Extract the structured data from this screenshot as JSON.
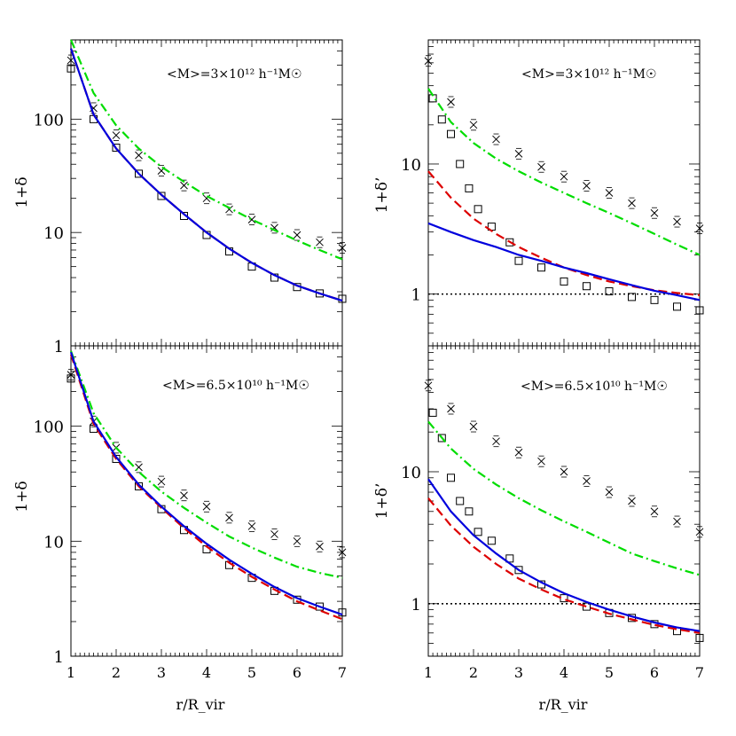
{
  "chart_data": [
    {
      "type": "scatter",
      "panel": "top-left",
      "annotation": "<M>=3×10¹² h⁻¹M☉",
      "ylabel": "1+δ",
      "xlabel": "",
      "xlim": [
        1,
        7
      ],
      "ylim": [
        1,
        500
      ],
      "yscale": "log",
      "yticks": [
        1,
        10,
        100
      ],
      "xticks": [],
      "series": [
        {
          "name": "",
          "marker": "x",
          "color": "#000000",
          "x": [
            1,
            1.5,
            2,
            2.5,
            3,
            3.5,
            4,
            4.5,
            5,
            5.5,
            6,
            6.5,
            7
          ],
          "y": [
            330,
            125,
            72,
            48,
            35,
            26,
            20,
            16,
            13,
            11,
            9.5,
            8.2,
            7.3
          ]
        },
        {
          "name": "",
          "marker": "square",
          "color": "#000000",
          "x": [
            1,
            1.5,
            2,
            2.5,
            3,
            3.5,
            4,
            4.5,
            5,
            5.5,
            6,
            6.5,
            7
          ],
          "y": [
            280,
            100,
            56,
            33,
            21,
            14,
            9.5,
            6.8,
            5.0,
            4.0,
            3.3,
            2.9,
            2.6
          ]
        },
        {
          "name": "",
          "line": "dash-dot",
          "color": "#00dd00",
          "x": [
            1,
            1.5,
            2,
            2.5,
            3,
            3.5,
            4,
            4.5,
            5,
            5.5,
            6,
            6.5,
            7
          ],
          "y": [
            500,
            170,
            88,
            55,
            38,
            28,
            21,
            16.5,
            13,
            10.5,
            8.5,
            7.0,
            5.8
          ]
        },
        {
          "name": "",
          "line": "dashed",
          "color": "#dd0000",
          "x": [
            1,
            1.5,
            2,
            2.5,
            3,
            3.5,
            4,
            4.5,
            5,
            5.5,
            6,
            6.5,
            7
          ],
          "y": [
            420,
            110,
            55,
            33,
            21.5,
            14.5,
            10,
            7.2,
            5.4,
            4.2,
            3.4,
            2.9,
            2.5
          ]
        },
        {
          "name": "",
          "line": "solid",
          "color": "#0000dd",
          "x": [
            1,
            1.5,
            2,
            2.5,
            3,
            3.5,
            4,
            4.5,
            5,
            5.5,
            6,
            6.5,
            7
          ],
          "y": [
            420,
            110,
            55,
            33,
            21.5,
            14.5,
            10,
            7.2,
            5.4,
            4.2,
            3.4,
            2.9,
            2.5
          ]
        }
      ]
    },
    {
      "type": "scatter",
      "panel": "top-right",
      "annotation": "<M>=3×10¹² h⁻¹M☉",
      "ylabel": "1+δ’",
      "xlabel": "",
      "xlim": [
        1,
        7
      ],
      "ylim": [
        0.4,
        90
      ],
      "yscale": "log",
      "yticks": [
        1,
        10
      ],
      "xticks": [],
      "reference_line": 1,
      "series": [
        {
          "name": "",
          "marker": "x",
          "color": "#000000",
          "x": [
            1,
            1.5,
            2,
            2.5,
            3,
            3.5,
            4,
            4.5,
            5,
            5.5,
            6,
            6.5,
            7
          ],
          "y": [
            62,
            30,
            20,
            15.5,
            12,
            9.5,
            8,
            6.8,
            6,
            5,
            4.2,
            3.6,
            3.2
          ]
        },
        {
          "name": "",
          "marker": "square",
          "color": "#000000",
          "x": [
            1.1,
            1.3,
            1.5,
            1.7,
            1.9,
            2.1,
            2.4,
            2.8,
            3,
            3.5,
            4,
            4.5,
            5,
            5.5,
            6,
            6.5,
            7
          ],
          "y": [
            32,
            22,
            17,
            10,
            6.5,
            4.5,
            3.3,
            2.5,
            1.8,
            1.6,
            1.25,
            1.15,
            1.05,
            0.95,
            0.9,
            0.8,
            0.75
          ]
        },
        {
          "name": "",
          "line": "dash-dot",
          "color": "#00dd00",
          "x": [
            1,
            1.5,
            2,
            2.5,
            3,
            3.5,
            4,
            4.5,
            5,
            5.5,
            6,
            6.5,
            7
          ],
          "y": [
            38,
            21,
            14.5,
            11,
            8.8,
            7.2,
            6,
            5,
            4.2,
            3.5,
            2.9,
            2.4,
            2.0
          ]
        },
        {
          "name": "",
          "line": "dashed",
          "color": "#dd0000",
          "x": [
            1,
            1.5,
            2,
            2.5,
            3,
            3.5,
            4,
            4.5,
            5,
            5.5,
            6,
            6.5,
            7
          ],
          "y": [
            8.8,
            5.5,
            3.8,
            2.9,
            2.3,
            1.9,
            1.6,
            1.4,
            1.25,
            1.15,
            1.07,
            1.02,
            0.98
          ]
        },
        {
          "name": "",
          "line": "solid",
          "color": "#0000dd",
          "x": [
            1,
            1.5,
            2,
            2.5,
            3,
            3.5,
            4,
            4.5,
            5,
            5.5,
            6,
            6.5,
            7
          ],
          "y": [
            3.5,
            3.0,
            2.6,
            2.3,
            2.0,
            1.8,
            1.6,
            1.45,
            1.3,
            1.17,
            1.06,
            0.98,
            0.9
          ]
        }
      ]
    },
    {
      "type": "scatter",
      "panel": "bottom-left",
      "annotation": "<M>=6.5×10¹⁰ h⁻¹M☉",
      "ylabel": "1+δ",
      "xlabel": "r/R_vir",
      "xlim": [
        1,
        7
      ],
      "ylim": [
        1,
        500
      ],
      "yscale": "log",
      "yticks": [
        1,
        10,
        100
      ],
      "xticks": [
        1,
        2,
        3,
        4,
        5,
        6,
        7
      ],
      "series": [
        {
          "name": "",
          "marker": "x",
          "color": "#000000",
          "x": [
            1,
            1.5,
            2,
            2.5,
            3,
            3.5,
            4,
            4.5,
            5,
            5.5,
            6,
            6.5,
            7
          ],
          "y": [
            280,
            110,
            65,
            44,
            33,
            25,
            20,
            16,
            13.5,
            11.5,
            10,
            9,
            8
          ]
        },
        {
          "name": "",
          "marker": "square",
          "color": "#000000",
          "x": [
            1,
            1.5,
            2,
            2.5,
            3,
            3.5,
            4,
            4.5,
            5,
            5.5,
            6,
            6.5,
            7
          ],
          "y": [
            260,
            95,
            52,
            30,
            19,
            12.5,
            8.5,
            6.2,
            4.8,
            3.7,
            3.1,
            2.7,
            2.4
          ]
        },
        {
          "name": "",
          "line": "dash-dot",
          "color": "#00dd00",
          "x": [
            1,
            1.5,
            2,
            2.5,
            3,
            3.5,
            4,
            4.5,
            5,
            5.5,
            6,
            6.5,
            7
          ],
          "y": [
            450,
            130,
            65,
            40,
            27,
            19.5,
            14.5,
            11,
            8.8,
            7.2,
            6,
            5.3,
            4.8
          ]
        },
        {
          "name": "",
          "line": "dashed",
          "color": "#dd0000",
          "x": [
            1,
            1.5,
            2,
            2.5,
            3,
            3.5,
            4,
            4.5,
            5,
            5.5,
            6,
            6.5,
            7
          ],
          "y": [
            420,
            105,
            52,
            30,
            19.5,
            13,
            9,
            6.5,
            4.9,
            3.8,
            3.0,
            2.5,
            2.1
          ]
        },
        {
          "name": "",
          "line": "solid",
          "color": "#0000dd",
          "x": [
            1,
            1.5,
            2,
            2.5,
            3,
            3.5,
            4,
            4.5,
            5,
            5.5,
            6,
            6.5,
            7
          ],
          "y": [
            440,
            110,
            54,
            31,
            20,
            13.5,
            9.5,
            6.9,
            5.2,
            4.0,
            3.2,
            2.7,
            2.3
          ]
        }
      ]
    },
    {
      "type": "scatter",
      "panel": "bottom-right",
      "annotation": "<M>=6.5×10¹⁰ h⁻¹M☉",
      "ylabel": "1+δ’",
      "xlabel": "r/R_vir",
      "xlim": [
        1,
        7
      ],
      "ylim": [
        0.4,
        90
      ],
      "yscale": "log",
      "yticks": [
        1,
        10
      ],
      "xticks": [
        1,
        2,
        3,
        4,
        5,
        6,
        7
      ],
      "reference_line": 1,
      "series": [
        {
          "name": "",
          "marker": "x",
          "color": "#000000",
          "x": [
            1,
            1.5,
            2,
            2.5,
            3,
            3.5,
            4,
            4.5,
            5,
            5.5,
            6,
            6.5,
            7
          ],
          "y": [
            45,
            30,
            22,
            17,
            14,
            12,
            10,
            8.5,
            7,
            6,
            5,
            4.2,
            3.5
          ]
        },
        {
          "name": "",
          "marker": "square",
          "color": "#000000",
          "x": [
            1.1,
            1.3,
            1.5,
            1.7,
            1.9,
            2.1,
            2.4,
            2.8,
            3,
            3.5,
            4,
            4.5,
            5,
            5.5,
            6,
            6.5,
            7
          ],
          "y": [
            28,
            18,
            9,
            6,
            5,
            3.5,
            3,
            2.2,
            1.8,
            1.4,
            1.1,
            0.95,
            0.85,
            0.78,
            0.7,
            0.62,
            0.55
          ]
        },
        {
          "name": "",
          "line": "dash-dot",
          "color": "#00dd00",
          "x": [
            1,
            1.5,
            2,
            2.5,
            3,
            3.5,
            4,
            4.5,
            5,
            5.5,
            6,
            6.5,
            7
          ],
          "y": [
            24,
            15,
            10.5,
            8,
            6.3,
            5.1,
            4.2,
            3.5,
            2.9,
            2.4,
            2.1,
            1.85,
            1.65
          ]
        },
        {
          "name": "",
          "line": "dashed",
          "color": "#dd0000",
          "x": [
            1,
            1.5,
            2,
            2.5,
            3,
            3.5,
            4,
            4.5,
            5,
            5.5,
            6,
            6.5,
            7
          ],
          "y": [
            6.3,
            3.9,
            2.7,
            2.0,
            1.55,
            1.28,
            1.08,
            0.95,
            0.84,
            0.76,
            0.69,
            0.64,
            0.6
          ]
        },
        {
          "name": "",
          "line": "solid",
          "color": "#0000dd",
          "x": [
            1,
            1.5,
            2,
            2.5,
            3,
            3.5,
            4,
            4.5,
            5,
            5.5,
            6,
            6.5,
            7
          ],
          "y": [
            8.8,
            5.0,
            3.3,
            2.4,
            1.8,
            1.45,
            1.2,
            1.03,
            0.9,
            0.8,
            0.72,
            0.66,
            0.62
          ]
        }
      ]
    }
  ]
}
